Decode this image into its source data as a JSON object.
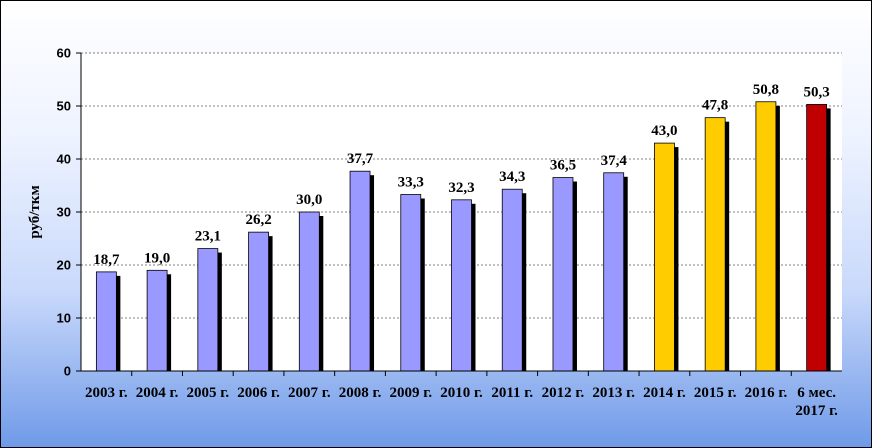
{
  "chart_data": {
    "type": "bar",
    "title": "",
    "xlabel": "",
    "ylabel": "руб/ткм",
    "ylim": [
      0,
      60
    ],
    "yticks": [
      "0",
      "10",
      "20",
      "30",
      "40",
      "50",
      "60"
    ],
    "grid": true,
    "legend": "none",
    "categories": [
      [
        "2003 г."
      ],
      [
        "2004 г."
      ],
      [
        "2005 г."
      ],
      [
        "2006 г."
      ],
      [
        "2007 г."
      ],
      [
        "2008 г."
      ],
      [
        "2009 г."
      ],
      [
        "2010 г."
      ],
      [
        "2011 г."
      ],
      [
        "2012 г."
      ],
      [
        "2013 г."
      ],
      [
        "2014 г."
      ],
      [
        "2015 г."
      ],
      [
        "2016 г."
      ],
      [
        "6 мес.",
        "2017 г."
      ]
    ],
    "values": [
      18.7,
      19.0,
      23.1,
      26.2,
      30.0,
      37.7,
      33.3,
      32.3,
      34.3,
      36.5,
      37.4,
      43.0,
      47.8,
      50.8,
      50.3
    ],
    "value_labels": [
      "18,7",
      "19,0",
      "23,1",
      "26,2",
      "30,0",
      "37,7",
      "33,3",
      "32,3",
      "34,3",
      "36,5",
      "37,4",
      "43,0",
      "47,8",
      "50,8",
      "50,3"
    ],
    "bar_colors": [
      "#9999ff",
      "#9999ff",
      "#9999ff",
      "#9999ff",
      "#9999ff",
      "#9999ff",
      "#9999ff",
      "#9999ff",
      "#9999ff",
      "#9999ff",
      "#9999ff",
      "#ffcc00",
      "#ffcc00",
      "#ffcc00",
      "#c00000"
    ],
    "colors": {
      "plot_background": "#ffffff",
      "bar_shadow": "#000000",
      "gridline": "#808080"
    }
  }
}
